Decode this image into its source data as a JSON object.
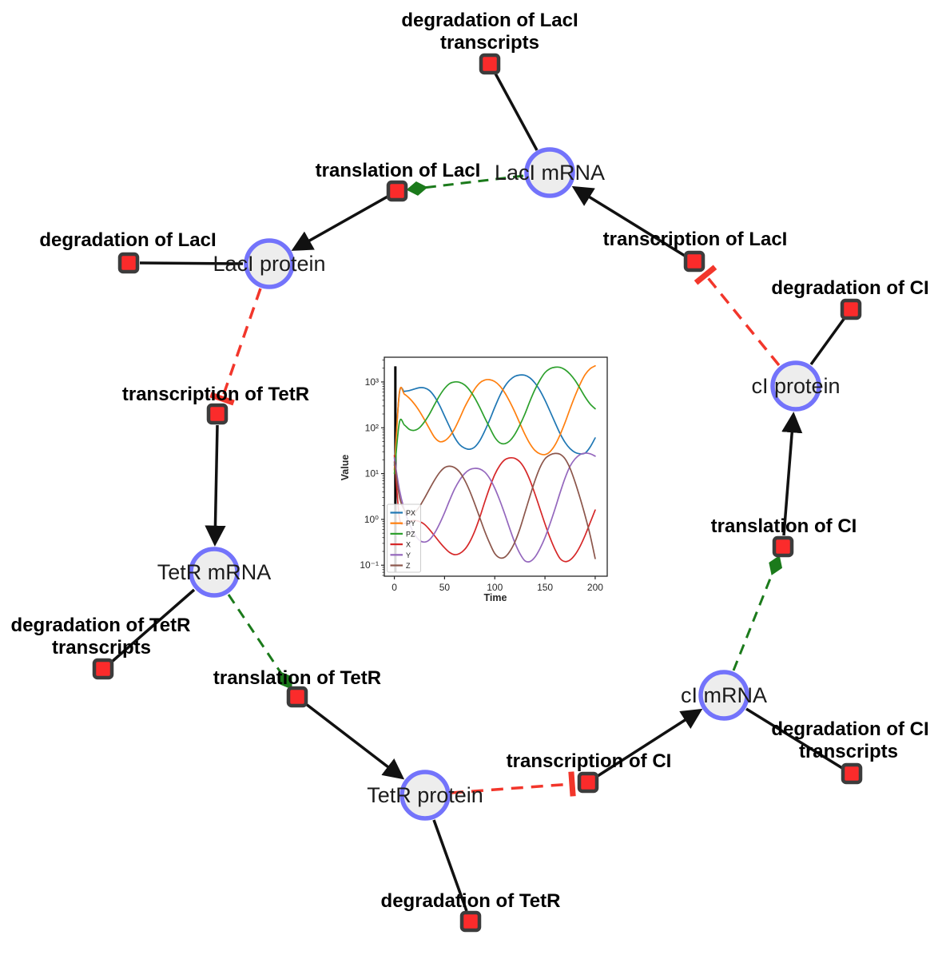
{
  "diagram": {
    "species": [
      {
        "id": "laci-mrna",
        "label": "LacI mRNA"
      },
      {
        "id": "laci-protein",
        "label": "LacI protein"
      },
      {
        "id": "tetr-mrna",
        "label": "TetR mRNA"
      },
      {
        "id": "tetr-protein",
        "label": "TetR protein"
      },
      {
        "id": "ci-mrna",
        "label": "cI mRNA"
      },
      {
        "id": "ci-protein",
        "label": "cI protein"
      }
    ],
    "reactions": [
      {
        "id": "degradation-laci-transcripts",
        "label_lines": [
          "degradation of LacI",
          "transcripts"
        ]
      },
      {
        "id": "translation-laci",
        "label_lines": [
          "translation of LacI"
        ]
      },
      {
        "id": "degradation-laci",
        "label_lines": [
          "degradation of LacI"
        ]
      },
      {
        "id": "transcription-tetr",
        "label_lines": [
          "transcription of TetR"
        ]
      },
      {
        "id": "degradation-tetr-transcripts",
        "label_lines": [
          "degradation of TetR",
          "transcripts"
        ]
      },
      {
        "id": "translation-tetr",
        "label_lines": [
          "translation of TetR"
        ]
      },
      {
        "id": "degradation-tetr",
        "label_lines": [
          "degradation of TetR"
        ]
      },
      {
        "id": "transcription-ci",
        "label_lines": [
          "transcription of CI"
        ]
      },
      {
        "id": "degradation-ci-transcripts",
        "label_lines": [
          "degradation of CI",
          "transcripts"
        ]
      },
      {
        "id": "translation-ci",
        "label_lines": [
          "translation of CI"
        ]
      },
      {
        "id": "degradation-ci",
        "label_lines": [
          "degradation of CI"
        ]
      },
      {
        "id": "transcription-laci",
        "label_lines": [
          "transcription of LacI"
        ]
      }
    ],
    "colors": {
      "species_stroke": "#7373fb",
      "species_fill": "#ededed",
      "reaction_fill": "#fb2b2b",
      "reaction_stroke": "#3c3c3c",
      "edge_black": "#111111",
      "edge_activation_green": "#1b7a1b",
      "edge_inhibition_red": "#f2362b"
    }
  },
  "chart_data": {
    "type": "line",
    "title": "",
    "xlabel": "Time",
    "ylabel": "Value",
    "y_scale": "log",
    "grid": false,
    "legend_position": "lower left",
    "xlim": [
      -10,
      212
    ],
    "ylim_log10": [
      -1.24,
      3.54
    ],
    "x_ticks": [
      0,
      50,
      100,
      150,
      200
    ],
    "y_tick_labels": [
      "10³",
      "10²",
      "10¹",
      "10⁰",
      "10⁻¹"
    ],
    "y_tick_log10": [
      3,
      2,
      1,
      0,
      -1
    ],
    "init_line": {
      "t": 1,
      "from": 0.07,
      "to": 2200,
      "color": "#000000"
    },
    "x": [
      0,
      5,
      10,
      15,
      20,
      25,
      30,
      35,
      40,
      45,
      50,
      55,
      60,
      65,
      70,
      75,
      80,
      85,
      90,
      95,
      100,
      105,
      110,
      115,
      120,
      125,
      130,
      135,
      140,
      145,
      150,
      155,
      160,
      165,
      170,
      175,
      180,
      185,
      190,
      195,
      200
    ],
    "series": [
      {
        "name": "PX",
        "color": "#1f77b4",
        "values": [
          15,
          560,
          620,
          650,
          700,
          750,
          740,
          650,
          480,
          310,
          180,
          105,
          62,
          43,
          36,
          34,
          38,
          52,
          85,
          150,
          280,
          500,
          800,
          1100,
          1330,
          1420,
          1400,
          1230,
          950,
          650,
          400,
          230,
          130,
          75,
          48,
          35,
          29,
          27,
          28,
          38,
          60
        ]
      },
      {
        "name": "PY",
        "color": "#ff7f0e",
        "values": [
          12,
          580,
          540,
          440,
          330,
          230,
          150,
          95,
          62,
          50,
          52,
          65,
          95,
          160,
          280,
          450,
          700,
          950,
          1100,
          1120,
          1020,
          820,
          580,
          370,
          220,
          125,
          72,
          45,
          32,
          27,
          26,
          30,
          42,
          70,
          130,
          260,
          500,
          900,
          1450,
          1950,
          2250
        ]
      },
      {
        "name": "PZ",
        "color": "#2ca02c",
        "values": [
          10,
          130,
          115,
          92,
          88,
          100,
          135,
          200,
          320,
          500,
          720,
          920,
          1000,
          980,
          860,
          660,
          450,
          280,
          165,
          100,
          62,
          47,
          45,
          52,
          72,
          115,
          200,
          380,
          680,
          1100,
          1600,
          1950,
          2100,
          2080,
          1850,
          1480,
          1080,
          720,
          470,
          330,
          260
        ]
      },
      {
        "name": "X",
        "color": "#d62728",
        "values": [
          25,
          1.1,
          0.82,
          0.9,
          0.95,
          0.9,
          0.78,
          0.6,
          0.44,
          0.32,
          0.24,
          0.19,
          0.17,
          0.18,
          0.22,
          0.32,
          0.55,
          1.1,
          2.4,
          5,
          9.5,
          15,
          20,
          22,
          21.5,
          18,
          12.5,
          7.2,
          3.6,
          1.7,
          0.8,
          0.4,
          0.22,
          0.14,
          0.12,
          0.13,
          0.17,
          0.26,
          0.45,
          0.85,
          1.6
        ]
      },
      {
        "name": "Y",
        "color": "#9467bd",
        "values": [
          22,
          4.5,
          1.6,
          0.8,
          0.48,
          0.35,
          0.32,
          0.36,
          0.5,
          0.8,
          1.4,
          2.6,
          4.6,
          7.2,
          10,
          12.2,
          13,
          12.6,
          10.8,
          7.8,
          4.8,
          2.6,
          1.3,
          0.62,
          0.31,
          0.18,
          0.125,
          0.12,
          0.15,
          0.23,
          0.4,
          0.8,
          1.7,
          3.8,
          8,
          14.5,
          21,
          26,
          28,
          27,
          24
        ]
      },
      {
        "name": "Z",
        "color": "#8c564b",
        "values": [
          18,
          3.2,
          1.6,
          1.3,
          1.4,
          1.9,
          2.9,
          4.6,
          7.2,
          10.5,
          13.5,
          14.5,
          13.5,
          10.8,
          7.2,
          4.2,
          2.2,
          1.1,
          0.55,
          0.3,
          0.18,
          0.145,
          0.15,
          0.2,
          0.32,
          0.62,
          1.4,
          3.2,
          7,
          13.5,
          21,
          25.5,
          27.5,
          26.5,
          21,
          13,
          6.5,
          2.9,
          1.2,
          0.45,
          0.14
        ]
      }
    ]
  }
}
